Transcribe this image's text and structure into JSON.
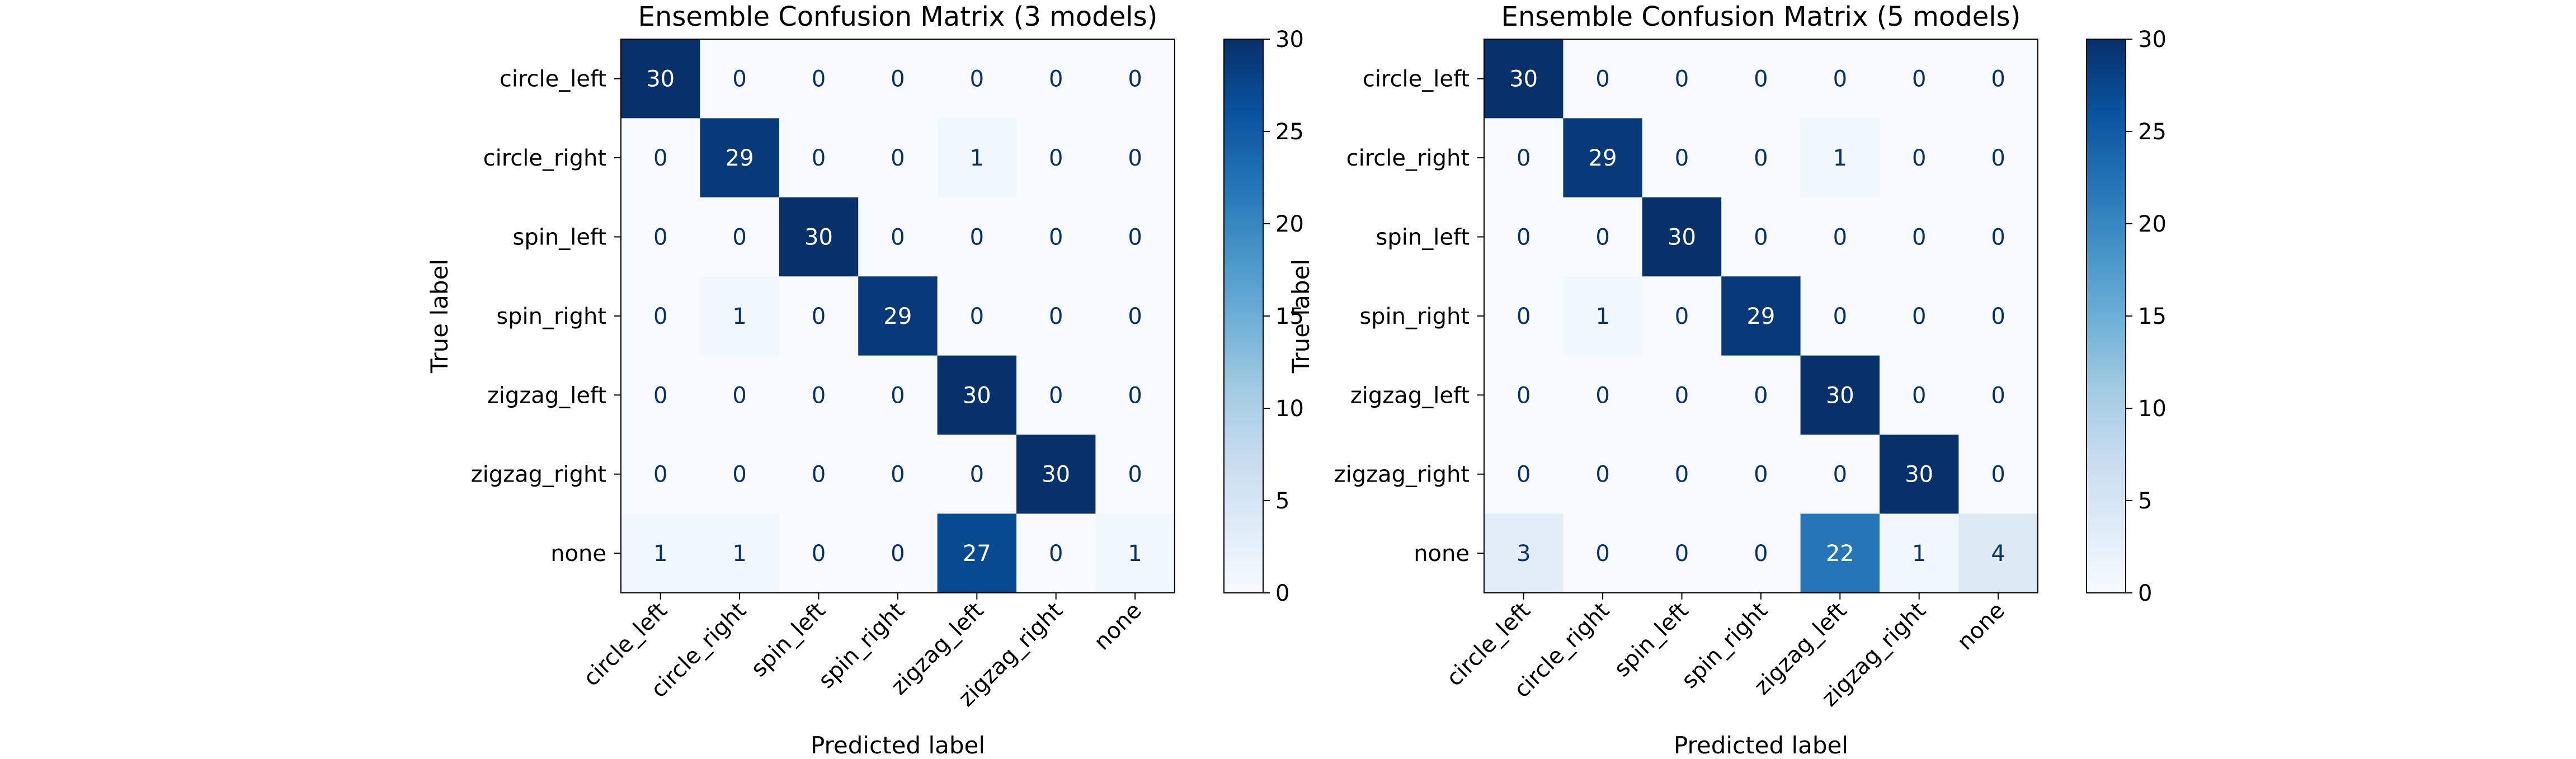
{
  "chart_data": [
    {
      "type": "heatmap",
      "title": "Ensemble Confusion Matrix (3 models)",
      "xlabel": "Predicted label",
      "ylabel": "True label",
      "x_categories": [
        "circle_left",
        "circle_right",
        "spin_left",
        "spin_right",
        "zigzag_left",
        "zigzag_right",
        "none"
      ],
      "y_categories": [
        "circle_left",
        "circle_right",
        "spin_left",
        "spin_right",
        "zigzag_left",
        "zigzag_right",
        "none"
      ],
      "values": [
        [
          30,
          0,
          0,
          0,
          0,
          0,
          0
        ],
        [
          0,
          29,
          0,
          0,
          1,
          0,
          0
        ],
        [
          0,
          0,
          30,
          0,
          0,
          0,
          0
        ],
        [
          0,
          1,
          0,
          29,
          0,
          0,
          0
        ],
        [
          0,
          0,
          0,
          0,
          30,
          0,
          0
        ],
        [
          0,
          0,
          0,
          0,
          0,
          30,
          0
        ],
        [
          1,
          1,
          0,
          0,
          27,
          0,
          1
        ]
      ],
      "colormap": "Blues",
      "colorbar_range": [
        0,
        30
      ],
      "colorbar_ticks": [
        0,
        5,
        10,
        15,
        20,
        25,
        30
      ]
    },
    {
      "type": "heatmap",
      "title": "Ensemble Confusion Matrix (5 models)",
      "xlabel": "Predicted label",
      "ylabel": "True label",
      "x_categories": [
        "circle_left",
        "circle_right",
        "spin_left",
        "spin_right",
        "zigzag_left",
        "zigzag_right",
        "none"
      ],
      "y_categories": [
        "circle_left",
        "circle_right",
        "spin_left",
        "spin_right",
        "zigzag_left",
        "zigzag_right",
        "none"
      ],
      "values": [
        [
          30,
          0,
          0,
          0,
          0,
          0,
          0
        ],
        [
          0,
          29,
          0,
          0,
          1,
          0,
          0
        ],
        [
          0,
          0,
          30,
          0,
          0,
          0,
          0
        ],
        [
          0,
          1,
          0,
          29,
          0,
          0,
          0
        ],
        [
          0,
          0,
          0,
          0,
          30,
          0,
          0
        ],
        [
          0,
          0,
          0,
          0,
          0,
          30,
          0
        ],
        [
          3,
          0,
          0,
          0,
          22,
          1,
          4
        ]
      ],
      "colormap": "Blues",
      "colorbar_range": [
        0,
        30
      ],
      "colorbar_ticks": [
        0,
        5,
        10,
        15,
        20,
        25,
        30
      ]
    }
  ]
}
